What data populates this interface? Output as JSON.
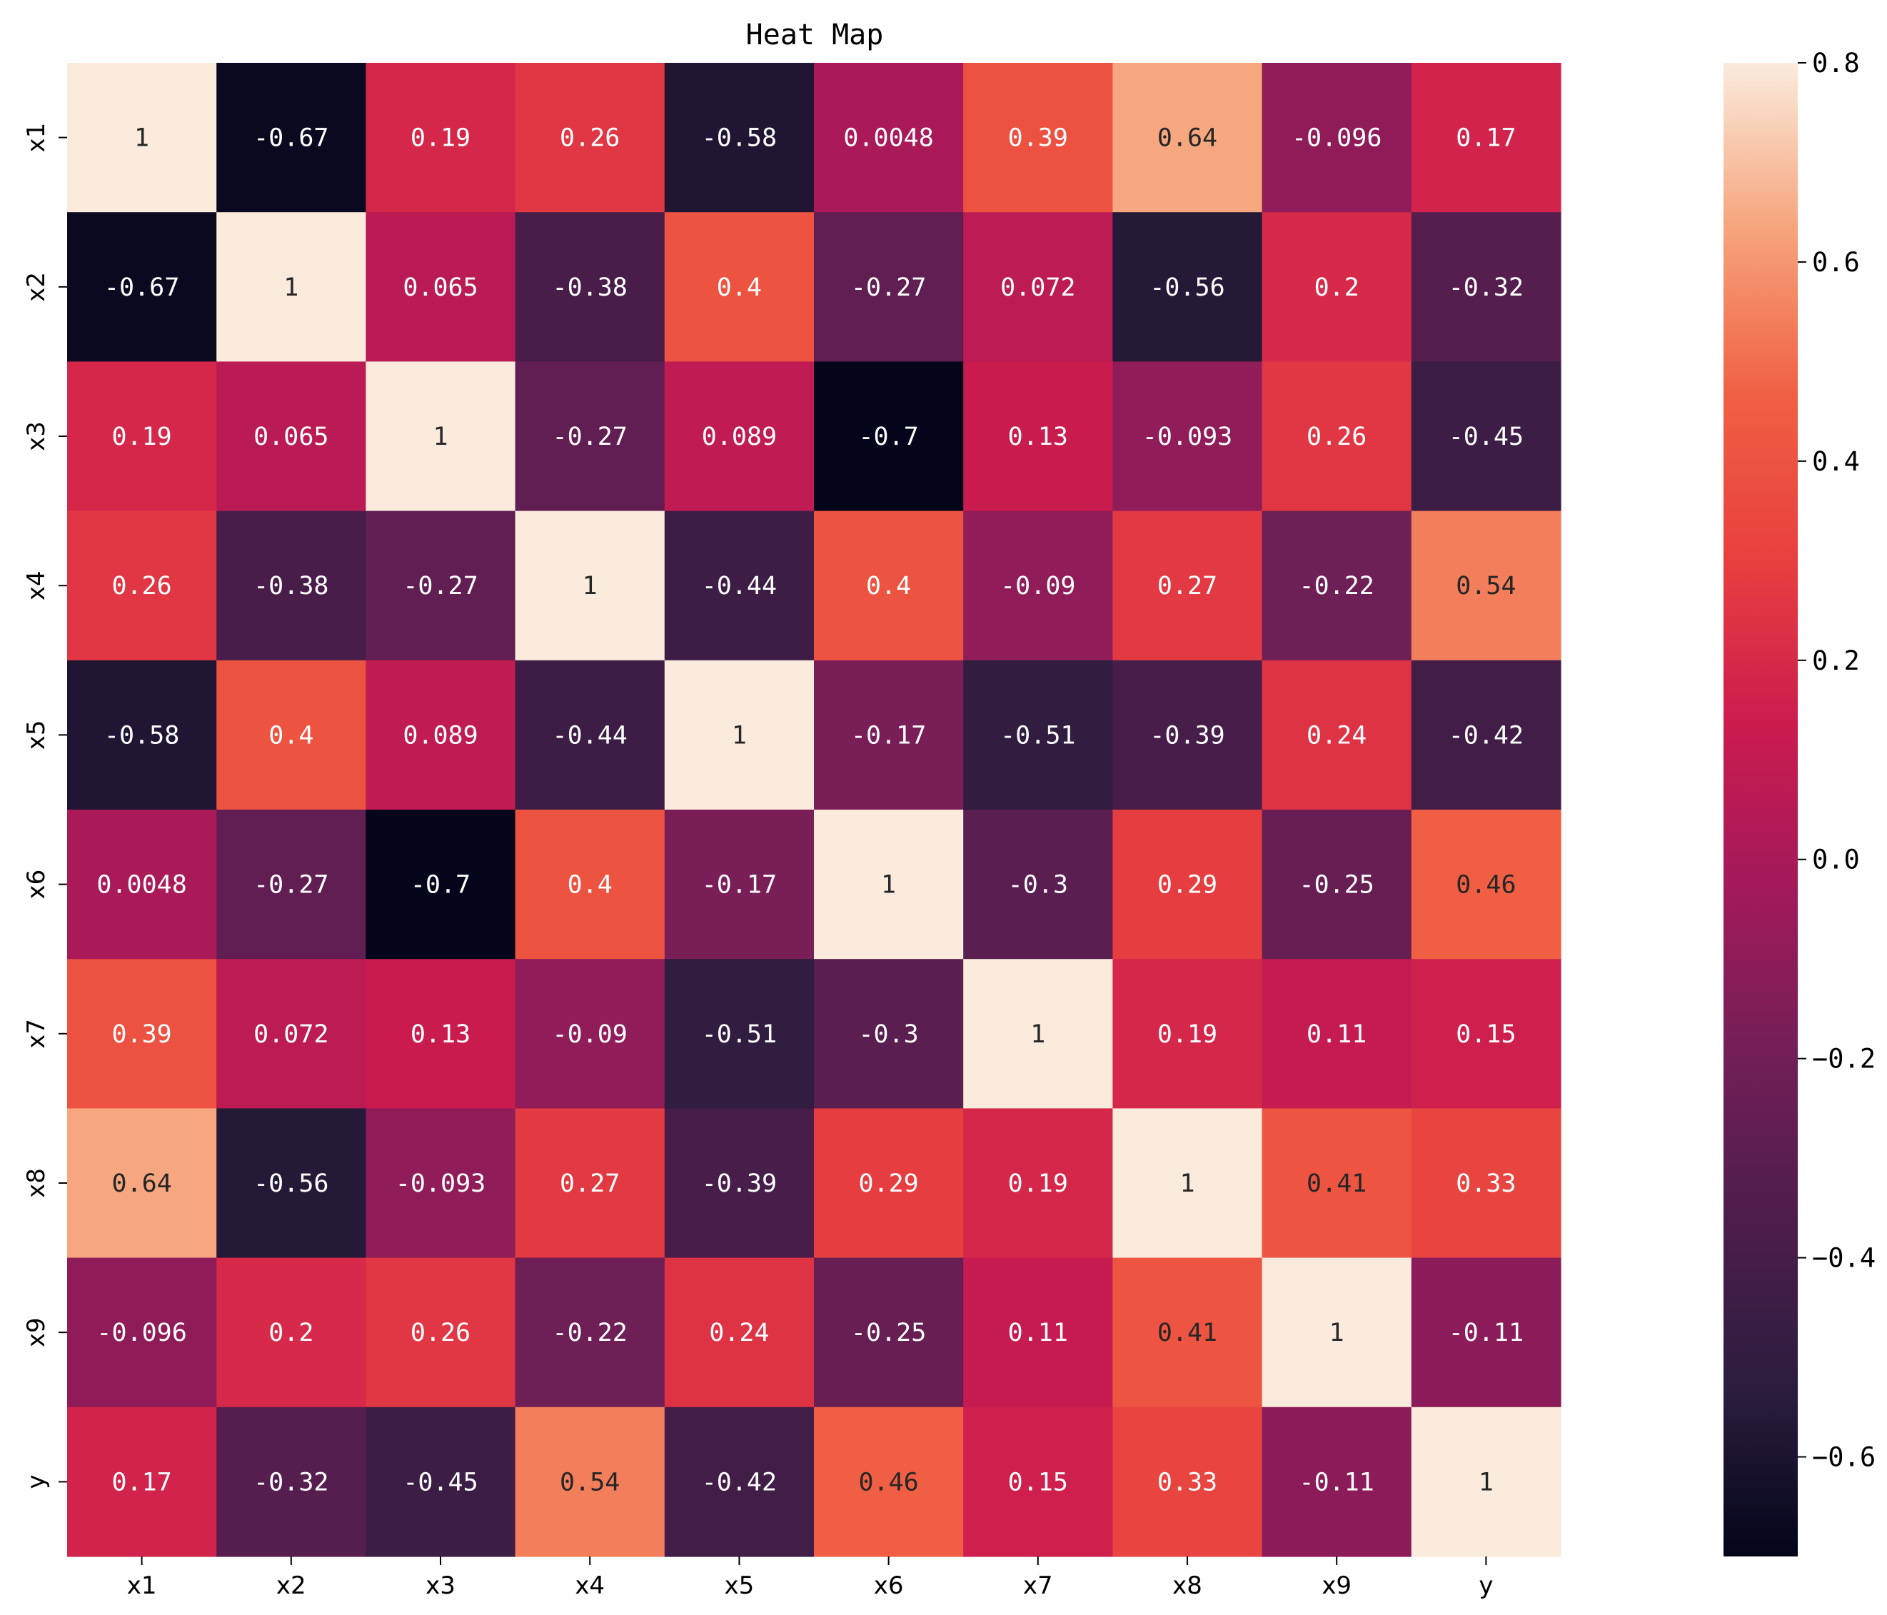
{
  "chart_data": {
    "type": "heatmap",
    "title": "Heat Map",
    "xlabel": "",
    "ylabel": "",
    "x_labels": [
      "x1",
      "x2",
      "x3",
      "x4",
      "x5",
      "x6",
      "x7",
      "x8",
      "x9",
      "y"
    ],
    "y_labels": [
      "x1",
      "x2",
      "x3",
      "x4",
      "x5",
      "x6",
      "x7",
      "x8",
      "x9",
      "y"
    ],
    "values": [
      [
        1,
        -0.67,
        0.19,
        0.26,
        -0.58,
        0.0048,
        0.39,
        0.64,
        -0.096,
        0.17
      ],
      [
        -0.67,
        1,
        0.065,
        -0.38,
        0.4,
        -0.27,
        0.072,
        -0.56,
        0.2,
        -0.32
      ],
      [
        0.19,
        0.065,
        1,
        -0.27,
        0.089,
        -0.7,
        0.13,
        -0.093,
        0.26,
        -0.45
      ],
      [
        0.26,
        -0.38,
        -0.27,
        1,
        -0.44,
        0.4,
        -0.09,
        0.27,
        -0.22,
        0.54
      ],
      [
        -0.58,
        0.4,
        0.089,
        -0.44,
        1,
        -0.17,
        -0.51,
        -0.39,
        0.24,
        -0.42
      ],
      [
        0.0048,
        -0.27,
        -0.7,
        0.4,
        -0.17,
        1,
        -0.3,
        0.29,
        -0.25,
        0.46
      ],
      [
        0.39,
        0.072,
        0.13,
        -0.09,
        -0.51,
        -0.3,
        1,
        0.19,
        0.11,
        0.15
      ],
      [
        0.64,
        -0.56,
        -0.093,
        0.27,
        -0.39,
        0.29,
        0.19,
        1,
        0.41,
        0.33
      ],
      [
        -0.096,
        0.2,
        0.26,
        -0.22,
        0.24,
        -0.25,
        0.11,
        0.41,
        1,
        -0.11
      ],
      [
        0.17,
        -0.32,
        -0.45,
        0.54,
        -0.42,
        0.46,
        0.15,
        0.33,
        -0.11,
        1
      ]
    ],
    "cell_labels": [
      [
        "1",
        "-0.67",
        "0.19",
        "0.26",
        "-0.58",
        "0.0048",
        "0.39",
        "0.64",
        "-0.096",
        "0.17"
      ],
      [
        "-0.67",
        "1",
        "0.065",
        "-0.38",
        "0.4",
        "-0.27",
        "0.072",
        "-0.56",
        "0.2",
        "-0.32"
      ],
      [
        "0.19",
        "0.065",
        "1",
        "-0.27",
        "0.089",
        "-0.7",
        "0.13",
        "-0.093",
        "0.26",
        "-0.45"
      ],
      [
        "0.26",
        "-0.38",
        "-0.27",
        "1",
        "-0.44",
        "0.4",
        "-0.09",
        "0.27",
        "-0.22",
        "0.54"
      ],
      [
        "-0.58",
        "0.4",
        "0.089",
        "-0.44",
        "1",
        "-0.17",
        "-0.51",
        "-0.39",
        "0.24",
        "-0.42"
      ],
      [
        "0.0048",
        "-0.27",
        "-0.7",
        "0.4",
        "-0.17",
        "1",
        "-0.3",
        "0.29",
        "-0.25",
        "0.46"
      ],
      [
        "0.39",
        "0.072",
        "0.13",
        "-0.09",
        "-0.51",
        "-0.3",
        "1",
        "0.19",
        "0.11",
        "0.15"
      ],
      [
        "0.64",
        "-0.56",
        "-0.093",
        "0.27",
        "-0.39",
        "0.29",
        "0.19",
        "1",
        "0.41",
        "0.33"
      ],
      [
        "-0.096",
        "0.2",
        "0.26",
        "-0.22",
        "0.24",
        "-0.25",
        "0.11",
        "0.41",
        "1",
        "-0.11"
      ],
      [
        "0.17",
        "-0.32",
        "-0.45",
        "0.54",
        "-0.42",
        "0.46",
        "0.15",
        "0.33",
        "-0.11",
        "1"
      ]
    ],
    "colorbar": {
      "vmin": -0.7,
      "vmax": 0.8,
      "ticks": [
        0.8,
        0.6,
        0.4,
        0.2,
        0.0,
        -0.2,
        -0.4,
        -0.6
      ],
      "tick_labels": [
        "0.8",
        "0.6",
        "0.4",
        "0.2",
        "0.0",
        "−0.2",
        "−0.4",
        "−0.6"
      ],
      "colors": [
        "#03051a",
        "#2b1d3e",
        "#4c1d4b",
        "#711f57",
        "#a11a5b",
        "#cb1b4f",
        "#e83f3f",
        "#f06043",
        "#f6a47c",
        "#faebdd"
      ]
    },
    "grid": false,
    "legend": "right colorbar"
  }
}
